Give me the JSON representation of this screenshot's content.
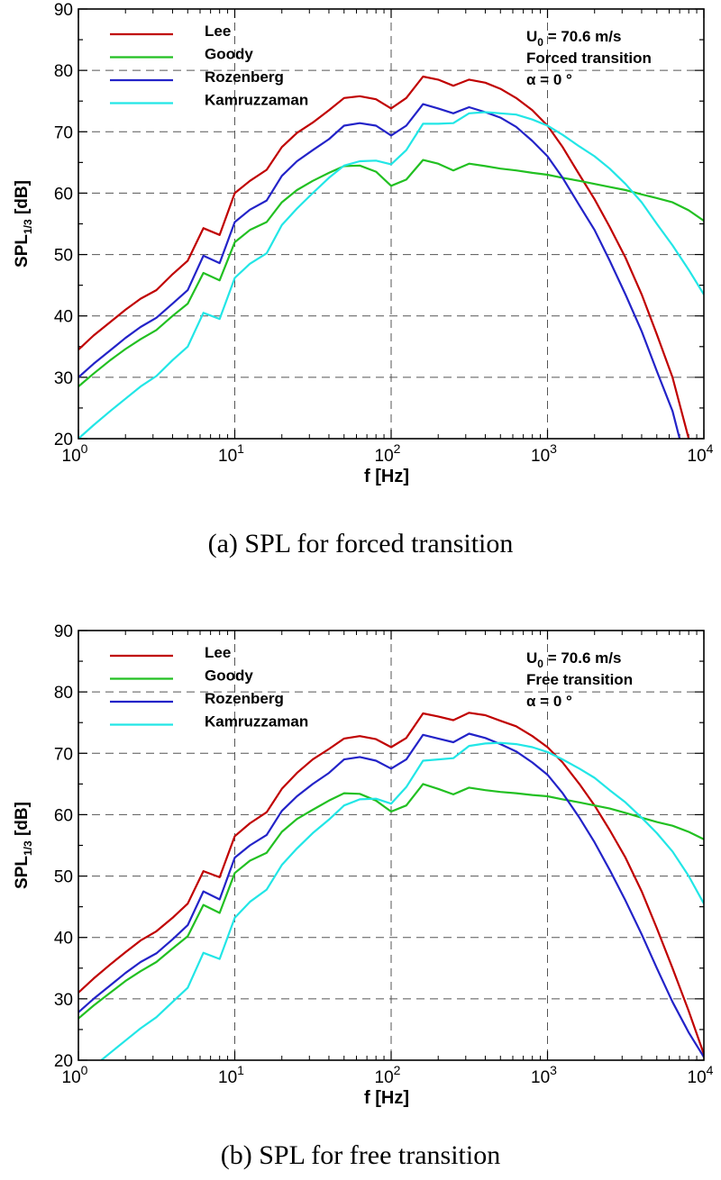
{
  "chart_data": [
    {
      "type": "line",
      "caption": "(a)  SPL  for  forced  transition",
      "xlabel": "f [Hz]",
      "ylabel": "SPL",
      "ylabel_sub": "1/3",
      "ylabel_unit": " [dB]",
      "xscale": "log",
      "xlim": [
        1,
        10000
      ],
      "ylim": [
        20,
        90
      ],
      "xticks": [
        {
          "value": 1,
          "base": "10",
          "exp": "0"
        },
        {
          "value": 10,
          "base": "10",
          "exp": "1"
        },
        {
          "value": 100,
          "base": "10",
          "exp": "2"
        },
        {
          "value": 1000,
          "base": "10",
          "exp": "3"
        },
        {
          "value": 10000,
          "base": "10",
          "exp": "4"
        }
      ],
      "yticks": [
        "20",
        "30",
        "40",
        "50",
        "60",
        "70",
        "80",
        "90"
      ],
      "grid": true,
      "legend_position": "top-left",
      "annotation": {
        "line1_main": "U",
        "line1_sub": "0",
        "line1_rest": " = 70.6 m/s",
        "line2": "Forced transition",
        "line3": "α = 0 °"
      },
      "series": [
        {
          "name": "Lee",
          "color": "#c00000",
          "x": [
            1,
            1.25,
            1.6,
            2,
            2.5,
            3.15,
            4,
            5,
            6.3,
            8,
            10,
            12.5,
            16,
            20,
            25,
            31.5,
            40,
            50,
            63,
            80,
            100,
            125,
            160,
            200,
            250,
            315,
            400,
            500,
            630,
            800,
            1000,
            1250,
            1600,
            2000,
            2500,
            3150,
            4000,
            5000,
            6300,
            8000
          ],
          "y": [
            34.5,
            36.8,
            39,
            41,
            42.8,
            44.2,
            46.8,
            49,
            54.3,
            53.2,
            60,
            62,
            63.8,
            67.5,
            69.8,
            71.5,
            73.5,
            75.5,
            75.8,
            75.3,
            73.8,
            75.5,
            79,
            78.5,
            77.5,
            78.5,
            78,
            77,
            75.5,
            73.5,
            71,
            67.5,
            63,
            59,
            54.5,
            49.5,
            43.5,
            37,
            30,
            20
          ]
        },
        {
          "name": "Goody",
          "color": "#22c022",
          "x": [
            1,
            1.25,
            1.6,
            2,
            2.5,
            3.15,
            4,
            5,
            6.3,
            8,
            10,
            12.5,
            16,
            20,
            25,
            31.5,
            40,
            50,
            63,
            80,
            100,
            125,
            160,
            200,
            250,
            315,
            400,
            500,
            630,
            800,
            1000,
            1250,
            1600,
            2000,
            2500,
            3150,
            4000,
            5000,
            6300,
            8000,
            10000
          ],
          "y": [
            28.5,
            30.6,
            32.8,
            34.6,
            36.2,
            37.7,
            40,
            42,
            47,
            45.8,
            52,
            54,
            55.3,
            58.5,
            60.5,
            62,
            63.3,
            64.4,
            64.5,
            63.5,
            61.2,
            62.2,
            65.4,
            64.8,
            63.7,
            64.8,
            64.4,
            64,
            63.7,
            63.3,
            63,
            62.5,
            62,
            61.5,
            61,
            60.5,
            59.8,
            59.2,
            58.5,
            57.2,
            55.5
          ]
        },
        {
          "name": "Rozenberg",
          "color": "#2323c8",
          "x": [
            1,
            1.25,
            1.6,
            2,
            2.5,
            3.15,
            4,
            5,
            6.3,
            8,
            10,
            12.5,
            16,
            20,
            25,
            31.5,
            40,
            50,
            63,
            80,
            100,
            125,
            160,
            200,
            250,
            315,
            400,
            500,
            630,
            800,
            1000,
            1250,
            1600,
            2000,
            2500,
            3150,
            4000,
            5000,
            6300,
            7000
          ],
          "y": [
            30,
            32.2,
            34.4,
            36.4,
            38.2,
            39.7,
            42,
            44.2,
            49.8,
            48.6,
            55.3,
            57.3,
            58.8,
            62.8,
            65.2,
            67,
            68.8,
            71,
            71.4,
            71,
            69.4,
            71,
            74.5,
            73.8,
            73,
            74,
            73.2,
            72.3,
            70.8,
            68.5,
            66,
            62.5,
            58,
            54,
            49,
            43.5,
            37.5,
            31,
            24.5,
            20
          ]
        },
        {
          "name": "Kamruzzaman",
          "color": "#22e6e6",
          "x": [
            1,
            1.25,
            1.6,
            2,
            2.5,
            3.15,
            4,
            5,
            6.3,
            8,
            10,
            12.5,
            16,
            20,
            25,
            31.5,
            40,
            50,
            63,
            80,
            100,
            125,
            160,
            200,
            250,
            315,
            400,
            500,
            630,
            800,
            1000,
            1250,
            1600,
            2000,
            2500,
            3150,
            4000,
            5000,
            6300,
            8000,
            10000
          ],
          "y": [
            20,
            22.2,
            24.5,
            26.5,
            28.5,
            30.2,
            32.8,
            35,
            40.5,
            39.5,
            46.2,
            48.5,
            50.2,
            54.8,
            57.5,
            60,
            62.5,
            64.5,
            65.2,
            65.3,
            64.7,
            67,
            71.3,
            71.3,
            71.4,
            73,
            73.2,
            73,
            72.8,
            72,
            71,
            69.5,
            67.6,
            66,
            64,
            61.5,
            58.5,
            55,
            51.5,
            47.5,
            43.5
          ]
        }
      ]
    },
    {
      "type": "line",
      "caption": "(b)  SPL  for  free  transition",
      "xlabel": "f [Hz]",
      "ylabel": "SPL",
      "ylabel_sub": "1/3",
      "ylabel_unit": " [dB]",
      "xscale": "log",
      "xlim": [
        1,
        10000
      ],
      "ylim": [
        20,
        90
      ],
      "xticks": [
        {
          "value": 1,
          "base": "10",
          "exp": "0"
        },
        {
          "value": 10,
          "base": "10",
          "exp": "1"
        },
        {
          "value": 100,
          "base": "10",
          "exp": "2"
        },
        {
          "value": 1000,
          "base": "10",
          "exp": "3"
        },
        {
          "value": 10000,
          "base": "10",
          "exp": "4"
        }
      ],
      "yticks": [
        "20",
        "30",
        "40",
        "50",
        "60",
        "70",
        "80",
        "90"
      ],
      "grid": true,
      "legend_position": "top-left",
      "annotation": {
        "line1_main": "U",
        "line1_sub": "0",
        "line1_rest": " = 70.6 m/s",
        "line2": "Free transition",
        "line3": "α = 0 °"
      },
      "series": [
        {
          "name": "Lee",
          "color": "#c00000",
          "x": [
            1,
            1.25,
            1.6,
            2,
            2.5,
            3.15,
            4,
            5,
            6.3,
            8,
            10,
            12.5,
            16,
            20,
            25,
            31.5,
            40,
            50,
            63,
            80,
            100,
            125,
            160,
            200,
            250,
            315,
            400,
            500,
            630,
            800,
            1000,
            1250,
            1600,
            2000,
            2500,
            3150,
            4000,
            5000,
            6300,
            8000,
            10000
          ],
          "y": [
            31,
            33.3,
            35.6,
            37.6,
            39.5,
            41,
            43.2,
            45.5,
            50.8,
            49.8,
            56.5,
            58.6,
            60.4,
            64.2,
            66.8,
            69,
            70.7,
            72.4,
            72.8,
            72.3,
            71,
            72.5,
            76.5,
            76,
            75.4,
            76.6,
            76.2,
            75.3,
            74.4,
            72.8,
            71,
            68.5,
            65,
            61.5,
            57.5,
            53,
            47.5,
            41.5,
            35,
            28,
            21
          ]
        },
        {
          "name": "Goody",
          "color": "#22c022",
          "x": [
            1,
            1.25,
            1.6,
            2,
            2.5,
            3.15,
            4,
            5,
            6.3,
            8,
            10,
            12.5,
            16,
            20,
            25,
            31.5,
            40,
            50,
            63,
            80,
            100,
            125,
            160,
            200,
            250,
            315,
            400,
            500,
            630,
            800,
            1000,
            1250,
            1600,
            2000,
            2500,
            3150,
            4000,
            5000,
            6300,
            8000,
            10000
          ],
          "y": [
            26.8,
            28.9,
            31,
            32.9,
            34.5,
            36,
            38.2,
            40.2,
            45.3,
            44,
            50.5,
            52.5,
            53.8,
            57.2,
            59.3,
            60.8,
            62.3,
            63.5,
            63.4,
            62.3,
            60.5,
            61.5,
            65,
            64.2,
            63.3,
            64.4,
            64,
            63.7,
            63.5,
            63.2,
            63,
            62.5,
            62,
            61.5,
            61,
            60.3,
            59.5,
            58.8,
            58.2,
            57.2,
            56
          ]
        },
        {
          "name": "Rozenberg",
          "color": "#2323c8",
          "x": [
            1,
            1.25,
            1.6,
            2,
            2.5,
            3.15,
            4,
            5,
            6.3,
            8,
            10,
            12.5,
            16,
            20,
            25,
            31.5,
            40,
            50,
            63,
            80,
            100,
            125,
            160,
            200,
            250,
            315,
            400,
            500,
            630,
            800,
            1000,
            1250,
            1600,
            2000,
            2500,
            3150,
            4000,
            5000,
            6300,
            8000,
            10000
          ],
          "y": [
            27.8,
            30,
            32.2,
            34.2,
            36,
            37.4,
            39.7,
            42,
            47.5,
            46.2,
            53,
            55,
            56.7,
            60.6,
            63,
            65,
            66.8,
            69,
            69.4,
            68.8,
            67.5,
            69,
            73,
            72.4,
            71.8,
            73.2,
            72.5,
            71.5,
            70.3,
            68.5,
            66.5,
            63.5,
            59.5,
            55.5,
            51,
            46,
            40.5,
            35,
            29.5,
            24.5,
            20.5
          ]
        },
        {
          "name": "Kamruzzaman",
          "color": "#22e6e6",
          "x": [
            1.4,
            1.6,
            2,
            2.5,
            3.15,
            4,
            5,
            6.3,
            8,
            10,
            12.5,
            16,
            20,
            25,
            31.5,
            40,
            50,
            63,
            80,
            100,
            125,
            160,
            200,
            250,
            315,
            400,
            500,
            630,
            800,
            1000,
            1250,
            1600,
            2000,
            2500,
            3150,
            4000,
            5000,
            6300,
            8000,
            10000
          ],
          "y": [
            20,
            21.2,
            23.2,
            25.2,
            27,
            29.5,
            31.8,
            37.5,
            36.5,
            43.2,
            45.8,
            47.8,
            51.8,
            54.5,
            57,
            59.2,
            61.5,
            62.5,
            62.6,
            61.8,
            64.5,
            68.8,
            69,
            69.2,
            71.2,
            71.6,
            71.7,
            71.5,
            71,
            70.2,
            69,
            67.5,
            66,
            64,
            62,
            59.5,
            57,
            54,
            50,
            45.5
          ]
        }
      ]
    }
  ]
}
